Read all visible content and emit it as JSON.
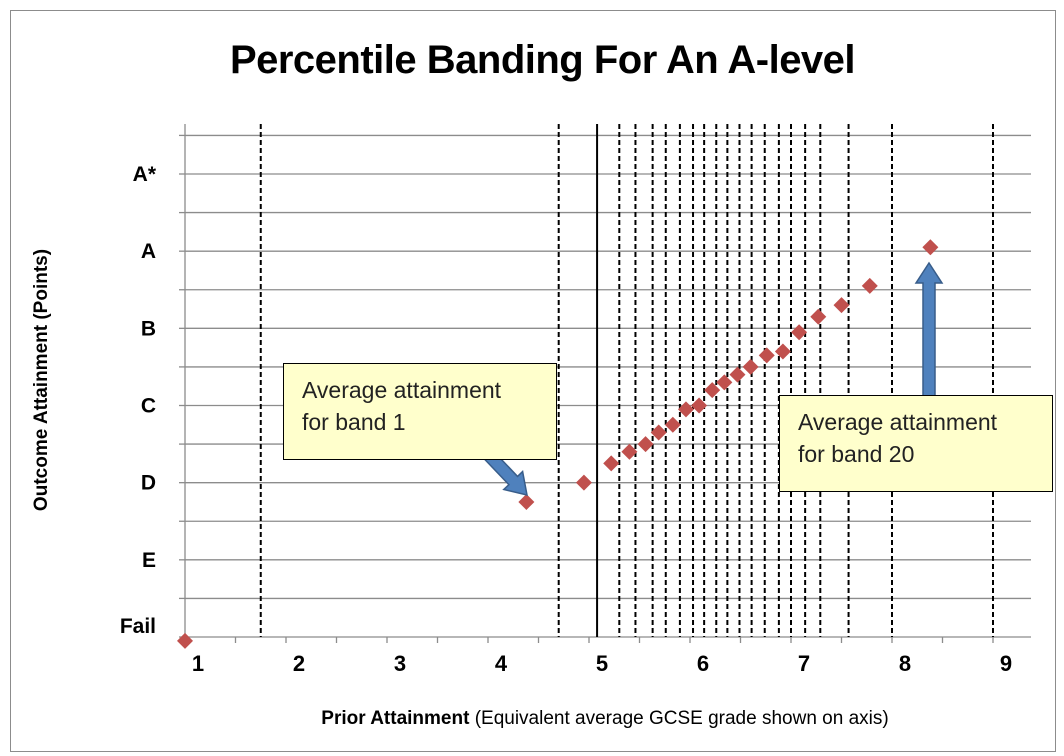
{
  "chart_data": {
    "type": "scatter",
    "title": "Percentile Banding For An A-level",
    "ylabel": "Outcome Attainment (Points)",
    "xlabel_bold": "Prior Attainment",
    "xlabel_rest": " (Equivalent average GCSE grade shown on axis)",
    "xlim": [
      1,
      9.4
    ],
    "ylim": [
      0,
      6.7
    ],
    "x_ticks": [
      "1",
      "2",
      "3",
      "4",
      "5",
      "6",
      "7",
      "8",
      "9"
    ],
    "y_ticks": [
      {
        "label": "Fail",
        "value": 0
      },
      {
        "label": "E",
        "value": 1
      },
      {
        "label": "D",
        "value": 2
      },
      {
        "label": "C",
        "value": 3
      },
      {
        "label": "B",
        "value": 4
      },
      {
        "label": "A",
        "value": 5
      },
      {
        "label": "A*",
        "value": 6
      }
    ],
    "grid": true,
    "band_boundaries": [
      1.75,
      4.7,
      5.3,
      5.46,
      5.63,
      5.76,
      5.9,
      6.03,
      6.14,
      6.26,
      6.37,
      6.49,
      6.61,
      6.74,
      6.88,
      7.0,
      7.14,
      7.29,
      7.57,
      8.0,
      9.0
    ],
    "solid_line": 5.08,
    "marker_color": "#c0504d",
    "points": [
      {
        "x": 1.0,
        "y": -0.05
      },
      {
        "x": 4.38,
        "y": 1.75
      },
      {
        "x": 4.95,
        "y": 2.0
      },
      {
        "x": 5.22,
        "y": 2.25
      },
      {
        "x": 5.4,
        "y": 2.4
      },
      {
        "x": 5.56,
        "y": 2.5
      },
      {
        "x": 5.69,
        "y": 2.65
      },
      {
        "x": 5.83,
        "y": 2.75
      },
      {
        "x": 5.96,
        "y": 2.95
      },
      {
        "x": 6.09,
        "y": 3.0
      },
      {
        "x": 6.22,
        "y": 3.2
      },
      {
        "x": 6.34,
        "y": 3.3
      },
      {
        "x": 6.47,
        "y": 3.4
      },
      {
        "x": 6.6,
        "y": 3.5
      },
      {
        "x": 6.76,
        "y": 3.65
      },
      {
        "x": 6.92,
        "y": 3.7
      },
      {
        "x": 7.08,
        "y": 3.95
      },
      {
        "x": 7.27,
        "y": 4.15
      },
      {
        "x": 7.5,
        "y": 4.3
      },
      {
        "x": 7.78,
        "y": 4.55
      },
      {
        "x": 8.38,
        "y": 5.05
      }
    ]
  },
  "callouts": {
    "band1": [
      "Average attainment",
      "for band 1"
    ],
    "band20": [
      "Average attainment",
      "for band 20"
    ]
  },
  "colors": {
    "arrow": "#4f81bd",
    "arrow_stroke": "#385d8a",
    "callout_fill": "#ffffcc"
  }
}
